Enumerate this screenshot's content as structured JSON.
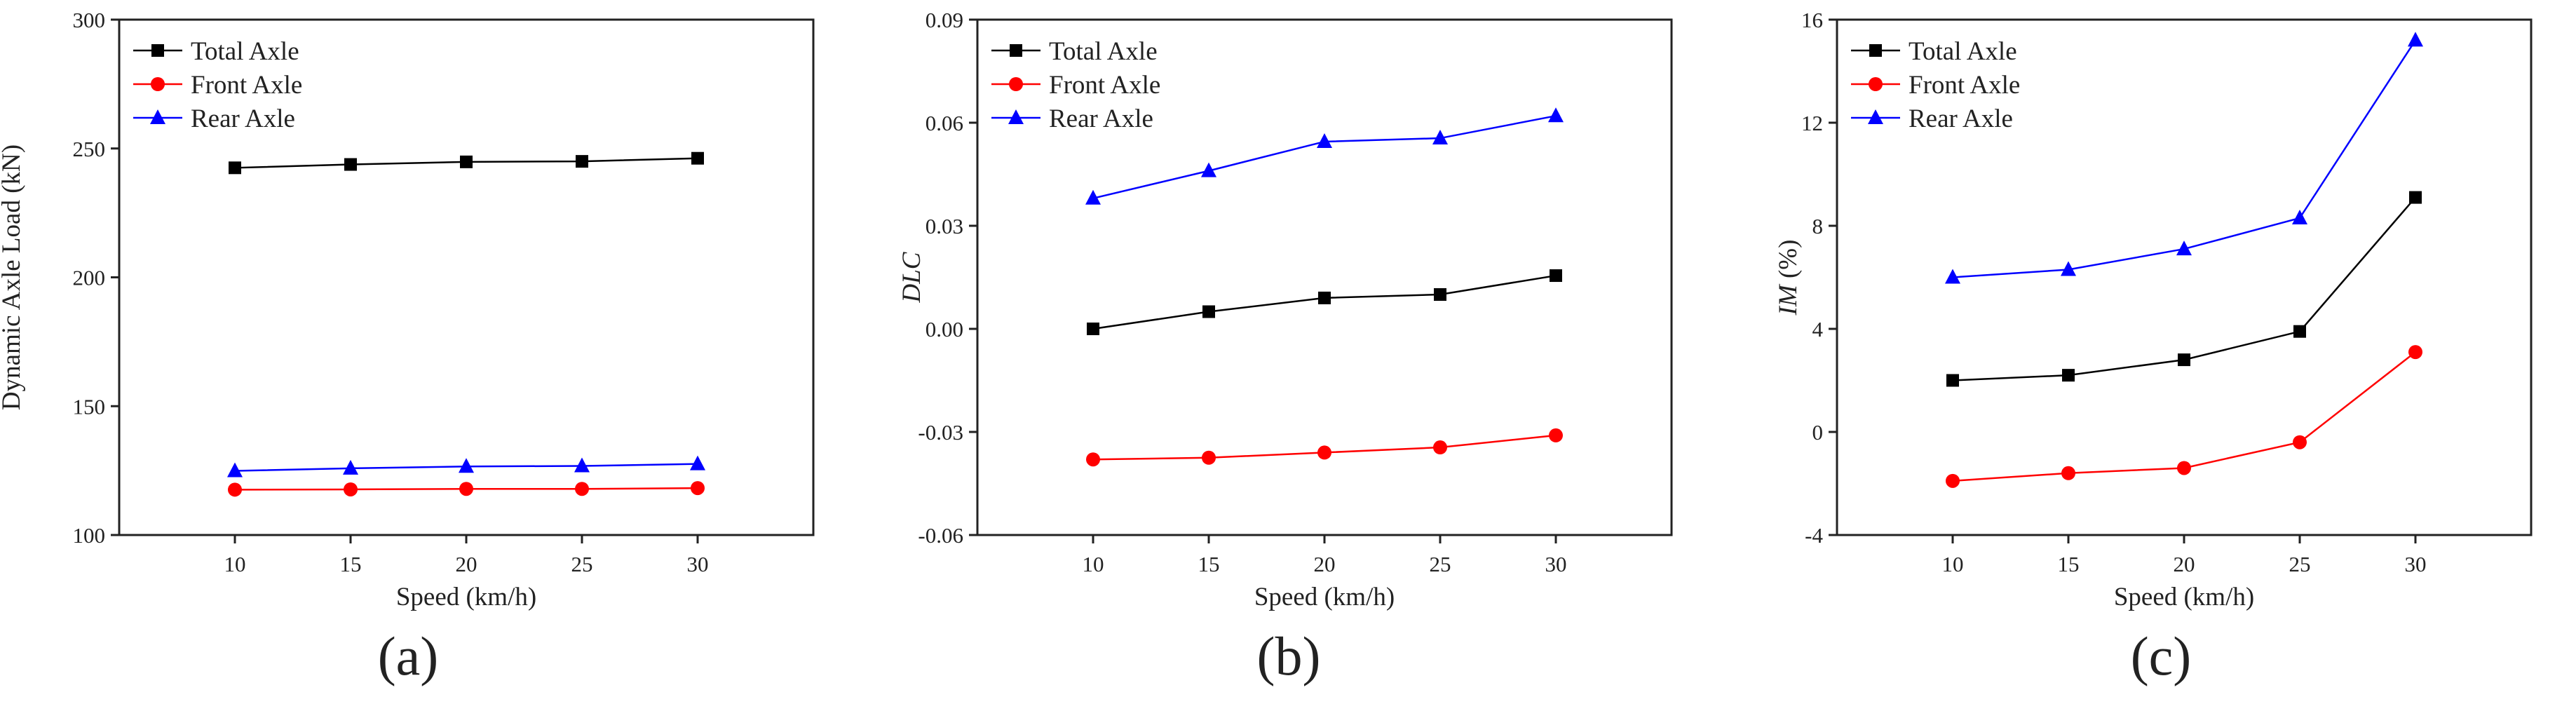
{
  "chart_data": [
    {
      "type": "line",
      "panel_label": "(a)",
      "xlabel": "Speed (km/h)",
      "ylabel": "Dynamic Axle Load (kN)",
      "ylabel_italic": "",
      "ylabel_rest": "",
      "x": [
        10,
        15,
        20,
        25,
        30
      ],
      "xlim": [
        5,
        35
      ],
      "ylim": [
        100,
        300
      ],
      "yticks": [
        100,
        150,
        200,
        250,
        300
      ],
      "ytick_labels": [
        "100",
        "150",
        "200",
        "250",
        "300"
      ],
      "series": [
        {
          "name": "Total Axle",
          "color": "#000000",
          "marker": "square",
          "values": [
            242.5,
            243.8,
            244.8,
            245.0,
            246.2
          ]
        },
        {
          "name": "Front Axle",
          "color": "#ff0000",
          "marker": "circle",
          "values": [
            117.6,
            117.7,
            117.9,
            117.9,
            118.2
          ]
        },
        {
          "name": "Rear Axle",
          "color": "#0000ff",
          "marker": "triangle",
          "values": [
            124.9,
            125.9,
            126.6,
            126.8,
            127.6
          ]
        }
      ],
      "legend": "top-left"
    },
    {
      "type": "line",
      "panel_label": "(b)",
      "xlabel": "Speed (km/h)",
      "ylabel": "",
      "ylabel_italic": "DLC",
      "ylabel_rest": "",
      "x": [
        10,
        15,
        20,
        25,
        30
      ],
      "xlim": [
        5,
        35
      ],
      "ylim": [
        -0.06,
        0.09
      ],
      "yticks": [
        -0.06,
        -0.03,
        0.0,
        0.03,
        0.06,
        0.09
      ],
      "ytick_labels": [
        "-0.06",
        "-0.03",
        "0.00",
        "0.03",
        "0.06",
        "0.09"
      ],
      "series": [
        {
          "name": "Total Axle",
          "color": "#000000",
          "marker": "square",
          "values": [
            0.0,
            0.005,
            0.009,
            0.01,
            0.0155
          ]
        },
        {
          "name": "Front Axle",
          "color": "#ff0000",
          "marker": "circle",
          "values": [
            -0.038,
            -0.0375,
            -0.036,
            -0.0345,
            -0.031
          ]
        },
        {
          "name": "Rear Axle",
          "color": "#0000ff",
          "marker": "triangle",
          "values": [
            0.038,
            0.046,
            0.0545,
            0.0555,
            0.062
          ]
        }
      ],
      "legend": "top-left"
    },
    {
      "type": "line",
      "panel_label": "(c)",
      "xlabel": "Speed (km/h)",
      "ylabel": "",
      "ylabel_italic": "IM",
      "ylabel_rest": " (%)",
      "x": [
        10,
        15,
        20,
        25,
        30
      ],
      "xlim": [
        5,
        35
      ],
      "ylim": [
        -4,
        16
      ],
      "yticks": [
        -4,
        0,
        4,
        8,
        12,
        16
      ],
      "ytick_labels": [
        "-4",
        "0",
        "4",
        "8",
        "12",
        "16"
      ],
      "series": [
        {
          "name": "Total Axle",
          "color": "#000000",
          "marker": "square",
          "values": [
            2.0,
            2.2,
            2.8,
            3.9,
            9.1
          ]
        },
        {
          "name": "Front Axle",
          "color": "#ff0000",
          "marker": "circle",
          "values": [
            -1.9,
            -1.6,
            -1.4,
            -0.4,
            3.1
          ]
        },
        {
          "name": "Rear Axle",
          "color": "#0000ff",
          "marker": "triangle",
          "values": [
            6.0,
            6.3,
            7.1,
            8.3,
            15.2
          ]
        }
      ],
      "legend": "top-left"
    }
  ]
}
